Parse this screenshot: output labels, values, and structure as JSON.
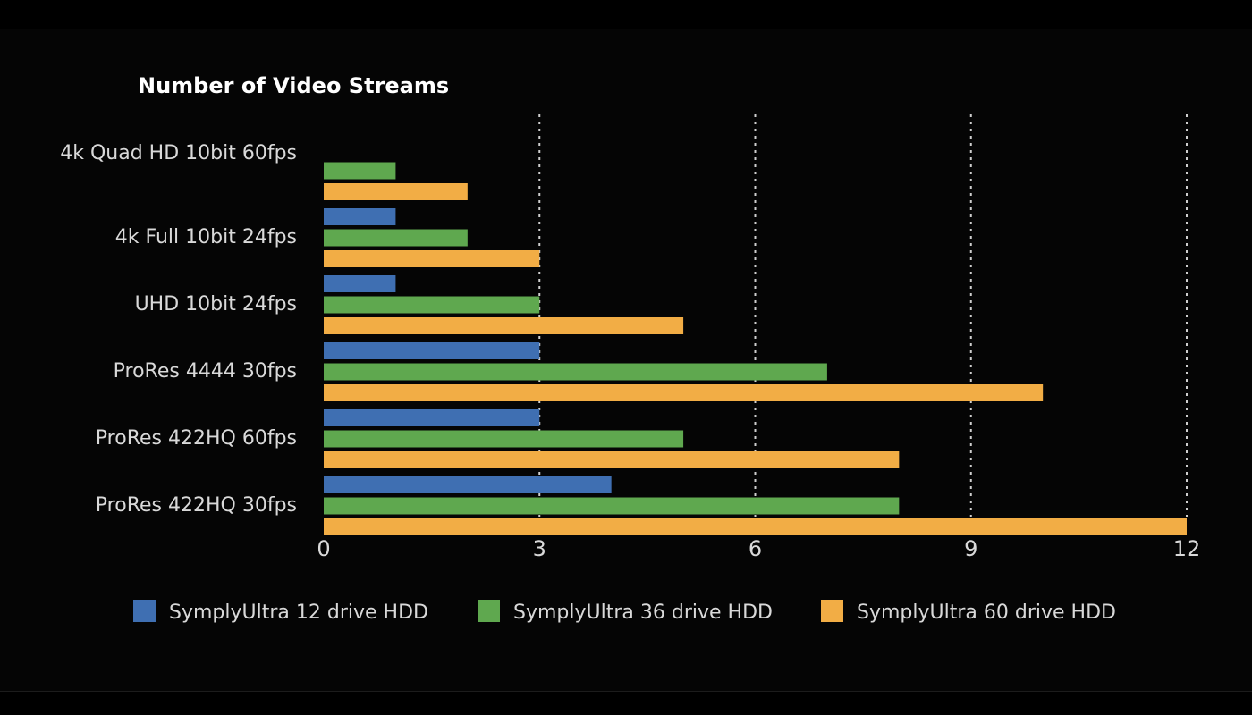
{
  "chart_data": {
    "type": "bar",
    "orientation": "horizontal",
    "title": "Number of Video Streams",
    "categories": [
      "4k Quad HD 10bit 60fps",
      "4k Full 10bit 24fps",
      "UHD 10bit 24fps",
      "ProRes 4444 30fps",
      "ProRes 422HQ 60fps",
      "ProRes 422HQ 30fps"
    ],
    "series": [
      {
        "name": "SymplyUltra 12 drive HDD",
        "color": "#3f6fb2",
        "values": [
          0,
          1,
          1,
          3,
          3,
          4
        ]
      },
      {
        "name": "SymplyUltra 36 drive HDD",
        "color": "#5fa84f",
        "values": [
          1,
          2,
          3,
          7,
          5,
          8
        ]
      },
      {
        "name": "SymplyUltra 60 drive HDD",
        "color": "#f2ad45",
        "values": [
          2,
          3,
          5,
          10,
          8,
          12
        ]
      }
    ],
    "xlim": [
      0,
      12
    ],
    "xticks": [
      "0",
      "3",
      "6",
      "9",
      "12"
    ],
    "xtick_values": [
      0,
      3,
      6,
      9,
      12
    ],
    "grid": true,
    "legend_position": "bottom"
  }
}
